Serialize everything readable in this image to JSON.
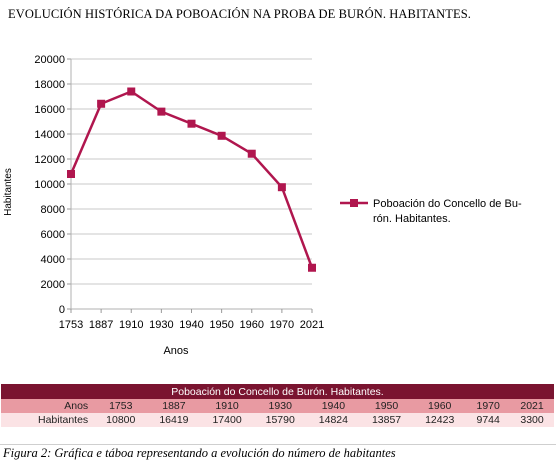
{
  "title": "EVOLUCIÓN HISTÓRICA DA POBOACIÓN NA PROBA DE BURÓN. HABITANTES.",
  "chart_data": {
    "type": "line",
    "categories": [
      "1753",
      "1887",
      "1910",
      "1930",
      "1940",
      "1950",
      "1960",
      "1970",
      "2021"
    ],
    "series": [
      {
        "name": "Poboación do Concello de Burón. Habitantes.",
        "values": [
          10800,
          16419,
          17400,
          15790,
          14824,
          13857,
          12423,
          9744,
          3300
        ],
        "color": "#b0164e"
      }
    ],
    "xlabel": "Anos",
    "ylabel": "Habitantes",
    "ylim": [
      0,
      20000
    ],
    "yticks": [
      0,
      2000,
      4000,
      6000,
      8000,
      10000,
      12000,
      14000,
      16000,
      18000,
      20000
    ],
    "grid": true,
    "legend": "right",
    "legend_lines": [
      "Poboación do Concello de Bu-",
      "rón. Habitantes."
    ]
  },
  "table": {
    "header": "Poboación do Concello de Burón. Habitantes.",
    "rows": [
      {
        "label": "Anos",
        "values": [
          "1753",
          "1887",
          "1910",
          "1930",
          "1940",
          "1950",
          "1960",
          "1970",
          "2021"
        ]
      },
      {
        "label": "Habitantes",
        "values": [
          "10800",
          "16419",
          "17400",
          "15790",
          "14824",
          "13857",
          "12423",
          "9744",
          "3300"
        ]
      }
    ]
  },
  "caption": "Figura 2: Gráfica e táboa representando a evolución do número de habitantes"
}
